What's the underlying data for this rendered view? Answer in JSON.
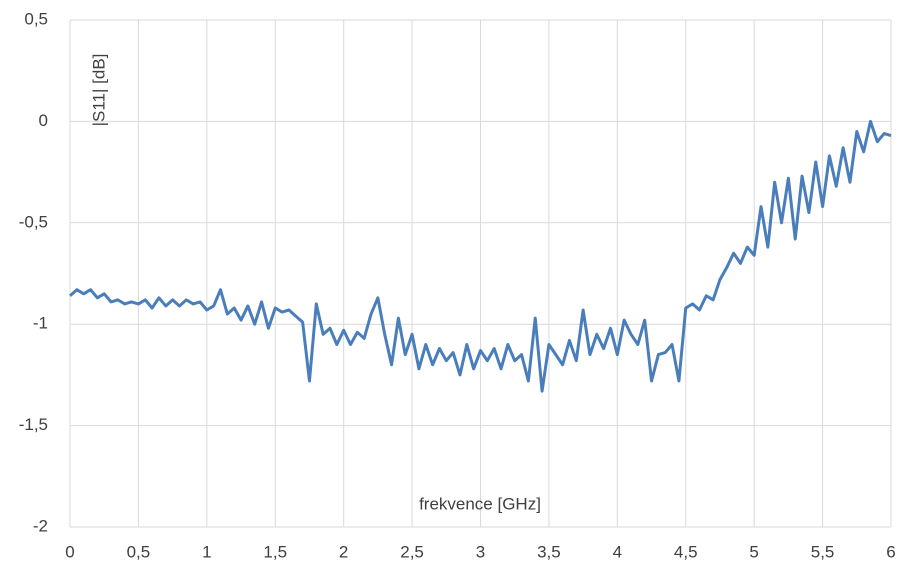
{
  "chart_data": {
    "type": "line",
    "y_label": "|S11| [dB]",
    "x_label": "frekvence [GHz]",
    "xlim": [
      0,
      6
    ],
    "ylim": [
      -2,
      0.5
    ],
    "xticks": [
      0,
      {
        "value": 0.5,
        "label": "0,5"
      },
      1,
      {
        "value": 1.5,
        "label": "1,5"
      },
      2,
      {
        "value": 2.5,
        "label": "2,5"
      },
      3,
      {
        "value": 3.5,
        "label": "3,5"
      },
      4,
      {
        "value": 4.5,
        "label": "4,5"
      },
      5,
      {
        "value": 5.5,
        "label": "5,5"
      },
      6
    ],
    "yticks": [
      -2,
      {
        "value": -1.5,
        "label": "-1,5"
      },
      -1,
      {
        "value": -0.5,
        "label": "-0,5"
      },
      0,
      {
        "value": 0.5,
        "label": "0,5"
      }
    ],
    "grid": true,
    "color": "#4a7ebb",
    "x": [
      0,
      0.05,
      0.1,
      0.15,
      0.2,
      0.25,
      0.3,
      0.35,
      0.4,
      0.45,
      0.5,
      0.55,
      0.6,
      0.65,
      0.7,
      0.75,
      0.8,
      0.85,
      0.9,
      0.95,
      1,
      1.05,
      1.1,
      1.15,
      1.2,
      1.25,
      1.3,
      1.35,
      1.4,
      1.45,
      1.5,
      1.55,
      1.6,
      1.65,
      1.7,
      1.75,
      1.8,
      1.85,
      1.9,
      1.95,
      2,
      2.05,
      2.1,
      2.15,
      2.2,
      2.25,
      2.3,
      2.35,
      2.4,
      2.45,
      2.5,
      2.55,
      2.6,
      2.65,
      2.7,
      2.75,
      2.8,
      2.85,
      2.9,
      2.95,
      3,
      3.05,
      3.1,
      3.15,
      3.2,
      3.25,
      3.3,
      3.35,
      3.4,
      3.45,
      3.5,
      3.55,
      3.6,
      3.65,
      3.7,
      3.75,
      3.8,
      3.85,
      3.9,
      3.95,
      4,
      4.05,
      4.1,
      4.15,
      4.2,
      4.25,
      4.3,
      4.35,
      4.4,
      4.45,
      4.5,
      4.55,
      4.6,
      4.65,
      4.7,
      4.75,
      4.8,
      4.85,
      4.9,
      4.95,
      5,
      5.05,
      5.1,
      5.15,
      5.2,
      5.25,
      5.3,
      5.35,
      5.4,
      5.45,
      5.5,
      5.55,
      5.6,
      5.65,
      5.7,
      5.75,
      5.8,
      5.85,
      5.9,
      5.95,
      6
    ],
    "values": [
      -0.86,
      -0.83,
      -0.85,
      -0.83,
      -0.87,
      -0.85,
      -0.89,
      -0.88,
      -0.9,
      -0.89,
      -0.9,
      -0.88,
      -0.92,
      -0.87,
      -0.91,
      -0.88,
      -0.91,
      -0.88,
      -0.9,
      -0.89,
      -0.93,
      -0.91,
      -0.83,
      -0.95,
      -0.92,
      -0.98,
      -0.91,
      -1.0,
      -0.89,
      -1.02,
      -0.92,
      -0.94,
      -0.93,
      -0.96,
      -0.99,
      -1.28,
      -0.9,
      -1.05,
      -1.02,
      -1.1,
      -1.03,
      -1.1,
      -1.04,
      -1.07,
      -0.95,
      -0.87,
      -1.05,
      -1.2,
      -0.97,
      -1.15,
      -1.05,
      -1.22,
      -1.1,
      -1.2,
      -1.12,
      -1.18,
      -1.14,
      -1.25,
      -1.1,
      -1.22,
      -1.13,
      -1.18,
      -1.12,
      -1.22,
      -1.1,
      -1.18,
      -1.15,
      -1.28,
      -0.97,
      -1.33,
      -1.1,
      -1.15,
      -1.2,
      -1.08,
      -1.18,
      -0.93,
      -1.15,
      -1.05,
      -1.12,
      -1.02,
      -1.15,
      -0.98,
      -1.05,
      -1.1,
      -0.98,
      -1.28,
      -1.15,
      -1.14,
      -1.1,
      -1.28,
      -0.92,
      -0.9,
      -0.93,
      -0.86,
      -0.88,
      -0.78,
      -0.72,
      -0.65,
      -0.7,
      -0.62,
      -0.66,
      -0.42,
      -0.62,
      -0.3,
      -0.5,
      -0.28,
      -0.58,
      -0.27,
      -0.45,
      -0.2,
      -0.42,
      -0.17,
      -0.32,
      -0.13,
      -0.3,
      -0.05,
      -0.15,
      0.0,
      -0.1,
      -0.06,
      -0.07
    ]
  }
}
